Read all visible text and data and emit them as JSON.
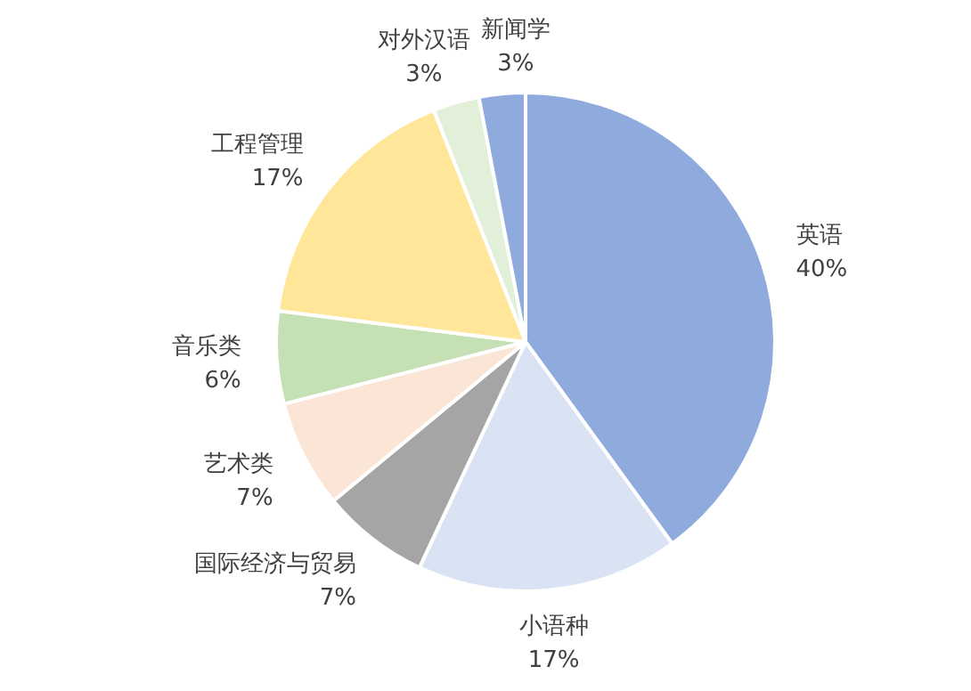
{
  "chart_data": {
    "type": "pie",
    "categories": [
      "英语",
      "小语种",
      "国际经济与贸易",
      "艺术类",
      "音乐类",
      "工程管理",
      "对外汉语",
      "新闻学"
    ],
    "values": [
      40,
      17,
      7,
      7,
      6,
      17,
      3,
      3
    ],
    "value_labels": [
      "40%",
      "17%",
      "7%",
      "7%",
      "6%",
      "17%",
      "3%",
      "3%"
    ],
    "colors": [
      "#8faadc",
      "#dae3f3",
      "#a5a5a5",
      "#fbe5d6",
      "#c5e0b4",
      "#ffe699",
      "#e2f0d9",
      "#8faadc"
    ]
  }
}
